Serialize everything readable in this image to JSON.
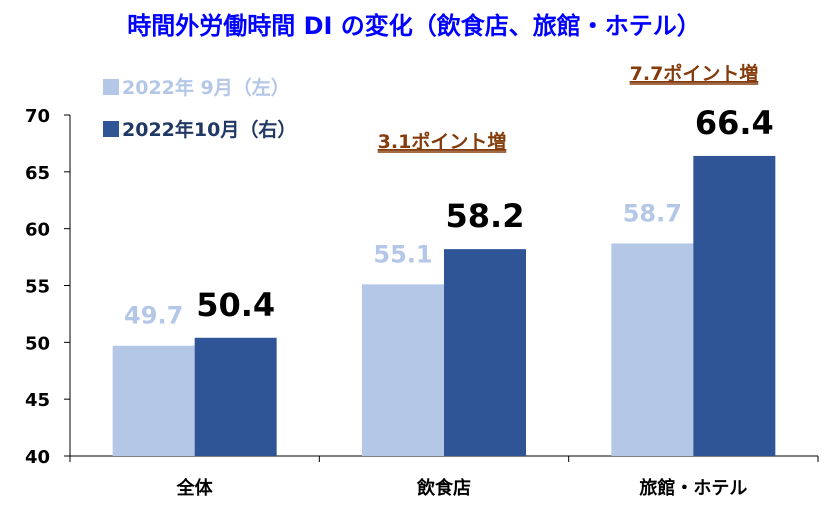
{
  "chart_data": {
    "type": "bar",
    "title": "時間外労働時間 DI の変化（飲食店、旅館・ホテル）",
    "categories": [
      "全体",
      "飲食店",
      "旅館・ホテル"
    ],
    "series": [
      {
        "name": "2022年 9月（左）",
        "values": [
          49.7,
          55.1,
          58.7
        ],
        "color": "#b4c7e7",
        "value_labels": [
          "49.7",
          "55.1",
          "58.7"
        ]
      },
      {
        "name": "2022年10月（右）",
        "values": [
          50.4,
          58.2,
          66.4
        ],
        "color": "#2f5597",
        "value_labels": [
          "50.4",
          "58.2",
          "66.4"
        ]
      }
    ],
    "yticks": [
      "40",
      "45",
      "50",
      "55",
      "60",
      "65",
      "70"
    ],
    "ylim": [
      40,
      70
    ],
    "grid": false,
    "legend_position": "top-left",
    "annotations": [
      {
        "text": "3.1ポイント増",
        "category_index": 1
      },
      {
        "text": "7.7ポイント増",
        "category_index": 2
      }
    ],
    "colors": {
      "title": "#0000ff",
      "annotation": "#843c0c",
      "axis": "#000000"
    }
  }
}
